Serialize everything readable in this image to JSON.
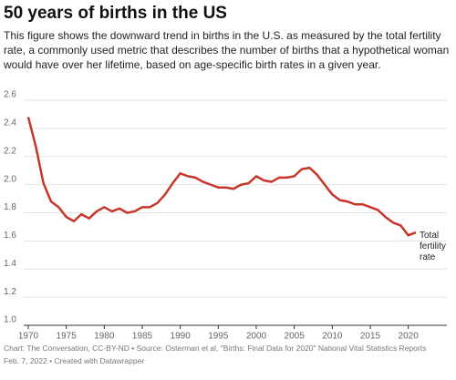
{
  "header": {
    "title": "50 years of births in the US",
    "subtitle": "This figure shows the downward trend in births in the U.S. as measured by the total fertility rate, a commonly used metric that describes the number of births that a hypothetical woman would have over her lifetime, based on age-specific birth rates in a given year."
  },
  "chart_data": {
    "type": "line",
    "x": [
      1970,
      1971,
      1972,
      1973,
      1974,
      1975,
      1976,
      1977,
      1978,
      1979,
      1980,
      1981,
      1982,
      1983,
      1984,
      1985,
      1986,
      1987,
      1988,
      1989,
      1990,
      1991,
      1992,
      1993,
      1994,
      1995,
      1996,
      1997,
      1998,
      1999,
      2000,
      2001,
      2002,
      2003,
      2004,
      2005,
      2006,
      2007,
      2008,
      2009,
      2010,
      2011,
      2012,
      2013,
      2014,
      2015,
      2016,
      2017,
      2018,
      2019,
      2020,
      2021
    ],
    "series": [
      {
        "name": "Total fertility rate",
        "color": "#c8352a",
        "values": [
          2.48,
          2.27,
          2.01,
          1.88,
          1.84,
          1.77,
          1.74,
          1.79,
          1.76,
          1.81,
          1.84,
          1.81,
          1.83,
          1.8,
          1.81,
          1.84,
          1.84,
          1.87,
          1.93,
          2.01,
          2.08,
          2.06,
          2.05,
          2.02,
          2.0,
          1.98,
          1.98,
          1.97,
          2.0,
          2.01,
          2.06,
          2.03,
          2.02,
          2.05,
          2.05,
          2.06,
          2.11,
          2.12,
          2.07,
          2.0,
          1.93,
          1.89,
          1.88,
          1.86,
          1.86,
          1.84,
          1.82,
          1.77,
          1.73,
          1.71,
          1.64,
          1.66
        ]
      }
    ],
    "xlim": [
      1970,
      2021
    ],
    "xticks": [
      1970,
      1975,
      1980,
      1985,
      1990,
      1995,
      2000,
      2005,
      2010,
      2015,
      2020
    ],
    "ylim": [
      1.0,
      2.6
    ],
    "yticks": [
      {
        "value": 1.0,
        "label": "1.0"
      },
      1.2,
      1.4,
      1.6,
      1.8,
      {
        "value": 2.0,
        "label": "2.0"
      },
      2.2,
      2.4,
      2.6
    ],
    "grid": true
  },
  "footer": {
    "source": "Chart: The Conversation, CC-BY-ND • Source: Osterman et al, \"Births: Final Data for 2020\" National Vital Statistics Reports",
    "credit": "Feb. 7, 2022 • Created with Datawrapper"
  }
}
